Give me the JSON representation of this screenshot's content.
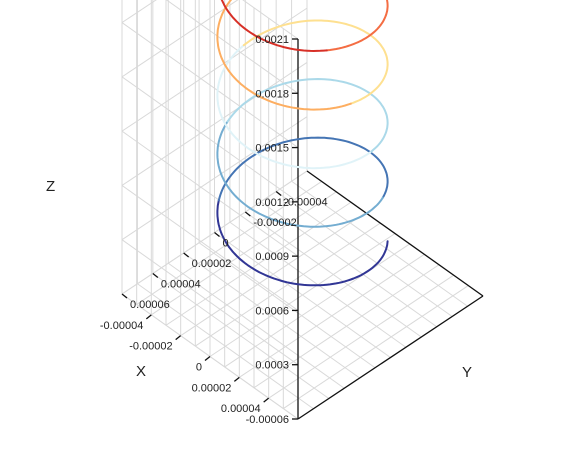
{
  "chart_data": {
    "type": "line3d",
    "title": "",
    "xlabel": "X",
    "ylabel": "Y",
    "zlabel": "Z",
    "x_ticks": [
      "-0.00004",
      "-0.00002",
      "0",
      "0.00002",
      "0.00004"
    ],
    "y_ticks": [
      "-0.00004",
      "-0.00002",
      "0",
      "0.00002",
      "0.00004",
      "0.00006"
    ],
    "z_ticks": [
      "-0.00006",
      "0.0003",
      "0.0006",
      "0.0009",
      "0.0012",
      "0.0015",
      "0.0018",
      "0.0021"
    ],
    "xlim": [
      -6e-05,
      6e-05
    ],
    "ylim": [
      -6e-05,
      6e-05
    ],
    "zlim": [
      0,
      0.0021
    ],
    "series": [
      {
        "curve": "helix",
        "radius": 4e-05,
        "turns": 5.25,
        "z_start": 0.0003,
        "z_end": 0.002,
        "colors": [
          "#313695",
          "#4575b4",
          "#74add1",
          "#abd9e9",
          "#e0f3f8",
          "#fee090",
          "#fdae61",
          "#f46d43",
          "#d73027",
          "#a50026"
        ]
      }
    ],
    "grid": true,
    "legend": "none"
  }
}
